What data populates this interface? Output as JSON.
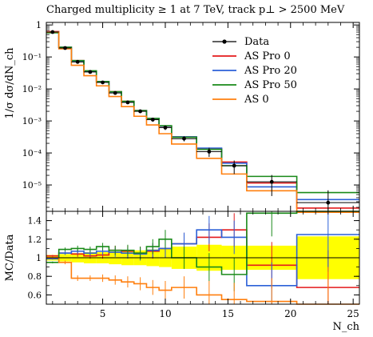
{
  "chart_data": [
    {
      "type": "line",
      "title": "Charged multiplicity ≥ 1 at 7 TeV, track p⊥ > 2500 MeV",
      "ylabel": "1/σ dσ/dN_ch",
      "yscale": "log",
      "ylim": [
        1.5e-06,
        1.2
      ],
      "xlim": [
        0.5,
        25.5
      ],
      "y_ticks": [
        {
          "value": 1,
          "label": "1"
        },
        {
          "value": 0.1,
          "label": "10⁻¹"
        },
        {
          "value": 0.01,
          "label": "10⁻²"
        },
        {
          "value": 0.001,
          "label": "10⁻³"
        },
        {
          "value": 0.0001,
          "label": "10⁻⁴"
        },
        {
          "value": 1e-05,
          "label": "10⁻⁵"
        }
      ],
      "legend_position": "top-right",
      "bin_edges": [
        0.5,
        1.5,
        2.5,
        3.5,
        4.5,
        5.5,
        6.5,
        7.5,
        8.5,
        9.5,
        10.5,
        12.5,
        14.5,
        16.5,
        20.5,
        25.5
      ],
      "data": {
        "name": "Data",
        "x": [
          1,
          2,
          3,
          4,
          5,
          6,
          7,
          8,
          9,
          10,
          11.5,
          13.5,
          15.5,
          18.5,
          23
        ],
        "y": [
          0.6,
          0.19,
          0.07,
          0.034,
          0.016,
          0.0075,
          0.0038,
          0.002,
          0.0011,
          0.00062,
          0.00028,
          0.00011,
          4e-05,
          1.25e-05,
          2.8e-06
        ],
        "err_up": [
          0.02,
          0.008,
          0.004,
          0.002,
          0.001,
          0.0006,
          0.0004,
          0.0002,
          0.00015,
          0.0001,
          5e-05,
          3.5e-05,
          1.8e-05,
          8e-06,
          4e-06
        ],
        "err_down": [
          0.02,
          0.008,
          0.004,
          0.002,
          0.001,
          0.0006,
          0.0004,
          0.0002,
          0.00015,
          0.0001,
          5e-05,
          3.5e-05,
          1.8e-05,
          8e-06,
          1.8e-06
        ]
      },
      "series": [
        {
          "name": "AS Pro 0",
          "color": "#e41a1c",
          "values": [
            0.62,
            0.2,
            0.077,
            0.035,
            0.017,
            0.0082,
            0.0041,
            0.0021,
            0.00118,
            0.00068,
            0.00032,
            0.000135,
            5.2e-05,
            1.15e-05,
            1.9e-06
          ]
        },
        {
          "name": "AS Pro 20",
          "color": "#2b60d8",
          "values": [
            0.6,
            0.2,
            0.075,
            0.035,
            0.017,
            0.0081,
            0.004,
            0.0021,
            0.0012,
            0.00069,
            0.00032,
            0.000142,
            4.8e-05,
            8.7e-06,
            3.5e-06
          ]
        },
        {
          "name": "AS Pro 50",
          "color": "#1a8a1a",
          "values": [
            0.57,
            0.2,
            0.077,
            0.037,
            0.017,
            0.0082,
            0.0041,
            0.0021,
            0.0012,
            0.00071,
            0.00031,
            0.00013,
            4e-05,
            1.85e-05,
            5.8e-06
          ]
        },
        {
          "name": "AS 0",
          "color": "#ff7f0e",
          "values": [
            0.6,
            0.18,
            0.055,
            0.026,
            0.0125,
            0.0058,
            0.0028,
            0.0014,
            0.00075,
            0.0004,
            0.00019,
            6.8e-05,
            2.2e-05,
            6.6e-06,
            1.4e-06
          ]
        }
      ]
    },
    {
      "type": "line",
      "ylabel": "MC/Data",
      "xlabel": "N_ch",
      "ylim": [
        0.5,
        1.5
      ],
      "xlim": [
        0.5,
        25.5
      ],
      "y_ticks": [
        {
          "value": 0.6,
          "label": "0.6"
        },
        {
          "value": 0.8,
          "label": "0.8"
        },
        {
          "value": 1.0,
          "label": "1"
        },
        {
          "value": 1.2,
          "label": "1.2"
        },
        {
          "value": 1.4,
          "label": "1.4"
        }
      ],
      "x_ticks": [
        {
          "value": 5,
          "label": "5"
        },
        {
          "value": 10,
          "label": "10"
        },
        {
          "value": 15,
          "label": "15"
        },
        {
          "value": 20,
          "label": "20"
        },
        {
          "value": 25,
          "label": "25"
        }
      ],
      "bin_edges": [
        0.5,
        1.5,
        2.5,
        3.5,
        4.5,
        5.5,
        6.5,
        7.5,
        8.5,
        9.5,
        10.5,
        12.5,
        14.5,
        16.5,
        20.5,
        25.5
      ],
      "band_halfwidth": [
        0.03,
        0.04,
        0.05,
        0.06,
        0.06,
        0.07,
        0.08,
        0.08,
        0.09,
        0.1,
        0.12,
        0.14,
        0.13,
        0.13,
        0.23
      ],
      "band_color": "#ffff00",
      "series": [
        {
          "name": "AS Pro 0",
          "color": "#e41a1c",
          "ratio": [
            1.02,
            1.05,
            1.04,
            1.02,
            1.03,
            1.08,
            1.07,
            1.05,
            1.07,
            1.1,
            1.15,
            1.22,
            1.3,
            0.92,
            0.68
          ],
          "err": [
            0.01,
            0.02,
            0.03,
            0.03,
            0.04,
            0.05,
            0.06,
            0.07,
            0.08,
            0.1,
            0.12,
            0.15,
            0.18,
            0.25,
            0.4
          ]
        },
        {
          "name": "AS Pro 20",
          "color": "#2b60d8",
          "ratio": [
            0.99,
            1.05,
            1.07,
            1.05,
            1.07,
            1.06,
            1.05,
            1.04,
            1.08,
            1.1,
            1.15,
            1.3,
            1.22,
            0.7,
            1.25
          ],
          "err": [
            0.01,
            0.02,
            0.03,
            0.03,
            0.04,
            0.05,
            0.06,
            0.07,
            0.08,
            0.1,
            0.12,
            0.15,
            0.18,
            0.25,
            0.4
          ]
        },
        {
          "name": "AS Pro 50",
          "color": "#1a8a1a",
          "ratio": [
            0.95,
            1.09,
            1.1,
            1.09,
            1.12,
            1.08,
            1.08,
            1.05,
            1.12,
            1.2,
            1.0,
            0.9,
            0.82,
            1.48,
            2.07
          ],
          "err": [
            0.01,
            0.02,
            0.03,
            0.03,
            0.04,
            0.05,
            0.06,
            0.07,
            0.08,
            0.1,
            0.12,
            0.15,
            0.18,
            0.25,
            0.4
          ]
        },
        {
          "name": "AS 0",
          "color": "#ff7f0e",
          "ratio": [
            1.0,
            0.95,
            0.78,
            0.78,
            0.78,
            0.76,
            0.74,
            0.72,
            0.68,
            0.65,
            0.68,
            0.6,
            0.55,
            0.53,
            0.5
          ],
          "err": [
            0.01,
            0.02,
            0.03,
            0.03,
            0.04,
            0.05,
            0.06,
            0.07,
            0.08,
            0.1,
            0.12,
            0.15,
            0.18,
            0.25,
            0.4
          ]
        }
      ]
    }
  ]
}
